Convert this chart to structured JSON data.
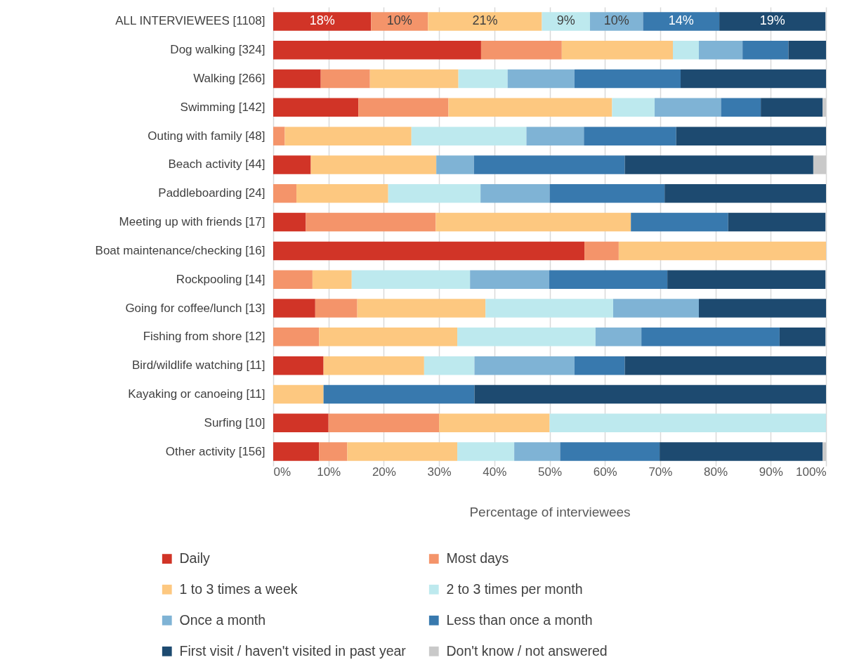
{
  "chart_data": {
    "type": "bar",
    "orientation": "horizontal",
    "stacked": true,
    "xlabel": "Percentage of interviewees",
    "categories": [
      "ALL INTERVIEWEES [1108]",
      "Dog walking [324]",
      "Walking [266]",
      "Swimming [142]",
      "Outing with family [48]",
      "Beach activity [44]",
      "Paddleboarding [24]",
      "Meeting up with friends [17]",
      "Boat maintenance/checking [16]",
      "Rockpooling [14]",
      "Going for coffee/lunch [13]",
      "Fishing from shore [12]",
      "Bird/wildlife watching [11]",
      "Kayaking or canoeing [11]",
      "Surfing [10]",
      "Other activity [156]"
    ],
    "series": [
      {
        "name": "Daily",
        "color": "#d13427",
        "values": [
          17.7,
          37.6,
          8.6,
          15.4,
          null,
          6.8,
          null,
          5.9,
          56.3,
          null,
          7.6,
          null,
          9.1,
          null,
          10,
          8.3
        ],
        "value_labels": [
          "18%",
          null,
          null,
          null,
          null,
          null,
          null,
          null,
          null,
          null,
          null,
          null,
          null,
          null,
          null,
          null
        ]
      },
      {
        "name": "Most days",
        "color": "#f4946a",
        "values": [
          10.3,
          14.6,
          8.9,
          16.3,
          2.1,
          null,
          4.2,
          23.5,
          6.2,
          7.1,
          7.6,
          8.3,
          null,
          null,
          20,
          5.1
        ],
        "value_labels": [
          "10%",
          null,
          null,
          null,
          null,
          null,
          null,
          null,
          null,
          null,
          null,
          null,
          null,
          null,
          null,
          null
        ]
      },
      {
        "name": "1 to 3 times a week",
        "color": "#fdc880",
        "values": [
          20.6,
          20.1,
          16.0,
          29.6,
          22.9,
          22.7,
          16.6,
          35.3,
          37.5,
          7.1,
          23.2,
          25.0,
          18.2,
          9.1,
          20,
          19.9
        ],
        "value_labels": [
          "21%",
          null,
          null,
          null,
          null,
          null,
          null,
          null,
          null,
          null,
          null,
          null,
          null,
          null,
          null,
          null
        ]
      },
      {
        "name": "2 to 3 times per month",
        "color": "#bde9ee",
        "values": [
          8.7,
          4.7,
          8.9,
          7.7,
          20.8,
          null,
          16.7,
          null,
          null,
          21.4,
          23.1,
          25.0,
          9.1,
          null,
          50,
          10.3
        ],
        "value_labels": [
          "9%",
          null,
          null,
          null,
          null,
          null,
          null,
          null,
          null,
          null,
          null,
          null,
          null,
          null,
          null,
          null
        ]
      },
      {
        "name": "Once a month",
        "color": "#7fb3d5",
        "values": [
          9.6,
          7.9,
          12.1,
          12.0,
          10.4,
          6.8,
          12.5,
          null,
          null,
          14.3,
          15.5,
          8.3,
          18.1,
          null,
          null,
          8.3
        ],
        "value_labels": [
          "10%",
          null,
          null,
          null,
          null,
          null,
          null,
          null,
          null,
          null,
          null,
          null,
          null,
          null,
          null,
          null
        ]
      },
      {
        "name": "Less than once a month",
        "color": "#3879ae",
        "values": [
          13.8,
          8.3,
          19.2,
          7.2,
          16.7,
          27.3,
          20.8,
          17.6,
          null,
          21.4,
          null,
          25.0,
          9.1,
          27.3,
          null,
          18.0
        ],
        "value_labels": [
          "14%",
          null,
          null,
          null,
          null,
          null,
          null,
          null,
          null,
          null,
          null,
          null,
          null,
          null,
          null,
          null
        ]
      },
      {
        "name": "First visit / haven't visited in past year",
        "color": "#1d4a70",
        "values": [
          19.2,
          6.8,
          26.3,
          11.2,
          27.1,
          34.1,
          29.2,
          17.6,
          null,
          28.6,
          23.0,
          8.3,
          36.4,
          63.6,
          null,
          29.5
        ],
        "value_labels": [
          "19%",
          null,
          null,
          null,
          null,
          null,
          null,
          null,
          null,
          null,
          null,
          null,
          null,
          null,
          null,
          null
        ]
      },
      {
        "name": "Don't know / not answered",
        "color": "#c9c9c9",
        "values": [
          null,
          null,
          null,
          0.6,
          null,
          2.3,
          null,
          null,
          null,
          null,
          null,
          null,
          null,
          null,
          null,
          0.6
        ]
      }
    ],
    "xlim": [
      0,
      100
    ],
    "xticks": [
      {
        "value": 0,
        "label": "0%"
      },
      {
        "value": 10,
        "label": "10%"
      },
      {
        "value": 20,
        "label": "20%"
      },
      {
        "value": 30,
        "label": "30%"
      },
      {
        "value": 40,
        "label": "40%"
      },
      {
        "value": 50,
        "label": "50%"
      },
      {
        "value": 60,
        "label": "60%"
      },
      {
        "value": 70,
        "label": "70%"
      },
      {
        "value": 80,
        "label": "80%"
      },
      {
        "value": 90,
        "label": "90%"
      },
      {
        "value": 100,
        "label": "100%"
      }
    ],
    "grid": "x",
    "legend": "bottom"
  }
}
